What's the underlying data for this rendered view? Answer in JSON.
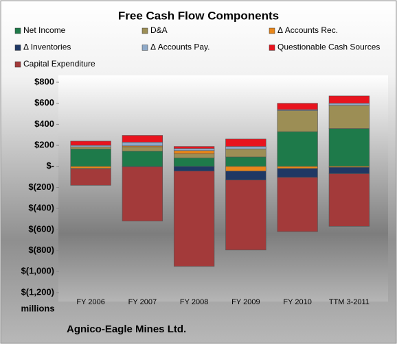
{
  "chart_data": {
    "type": "stacked-bar",
    "title": "Free Cash Flow Components",
    "categories": [
      "FY 2006",
      "FY 2007",
      "FY 2008",
      "FY 2009",
      "FY 2010",
      "TTM 3-2011"
    ],
    "series": [
      {
        "name": "Net Income",
        "color": "#1e7a4a",
        "values": [
          165,
          145,
          80,
          90,
          330,
          360
        ]
      },
      {
        "name": "D&A",
        "color": "#9c8e55",
        "values": [
          20,
          40,
          40,
          75,
          200,
          220
        ]
      },
      {
        "name": "Δ Accounts Rec.",
        "color": "#e8861a",
        "values": [
          -20,
          10,
          30,
          -45,
          -20,
          -10
        ]
      },
      {
        "name": "Δ Inventories",
        "color": "#1f3864",
        "values": [
          -5,
          -5,
          -45,
          -85,
          -85,
          -60
        ]
      },
      {
        "name": "Δ Accounts Pay.",
        "color": "#8ea9c8",
        "values": [
          15,
          35,
          20,
          25,
          10,
          20
        ]
      },
      {
        "name": "Questionable Cash Sources",
        "color": "#e8141e",
        "values": [
          40,
          65,
          20,
          70,
          60,
          70
        ]
      },
      {
        "name": "Capital Expenditure",
        "color": "#a33a3a",
        "values": [
          -155,
          -515,
          -905,
          -665,
          -515,
          -500
        ]
      }
    ],
    "ylim": [
      -1200,
      800
    ],
    "yticks": [
      {
        "value": 800,
        "label": "$800"
      },
      {
        "value": 600,
        "label": "$600"
      },
      {
        "value": 400,
        "label": "$400"
      },
      {
        "value": 200,
        "label": "$200"
      },
      {
        "value": 0,
        "label": "$-"
      },
      {
        "value": -200,
        "label": "$(200)"
      },
      {
        "value": -400,
        "label": "$(400)"
      },
      {
        "value": -600,
        "label": "$(600)"
      },
      {
        "value": -800,
        "label": "$(800)"
      },
      {
        "value": -1000,
        "label": "$(1,000)"
      },
      {
        "value": -1200,
        "label": "$(1,200)"
      }
    ],
    "y_unit": "millions",
    "company": "Agnico-Eagle Mines Ltd."
  }
}
